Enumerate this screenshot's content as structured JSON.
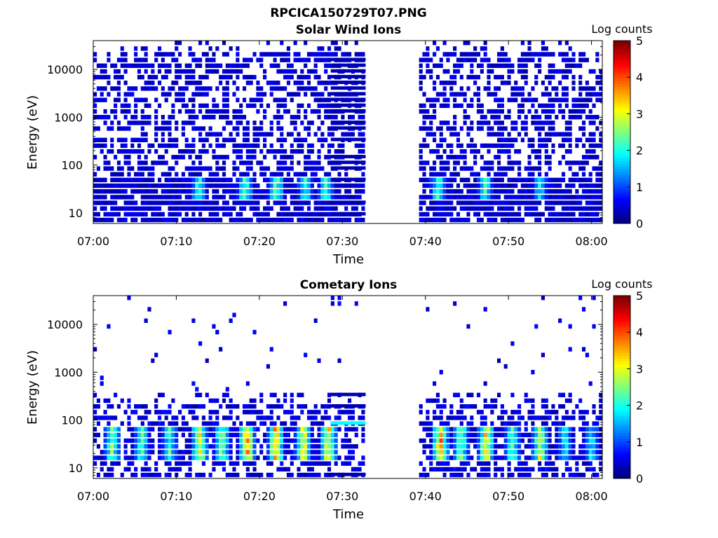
{
  "figure_title": "RPCICA150729T07.PNG",
  "chart_data": [
    {
      "type": "heatmap",
      "title": "Solar Wind Ions",
      "xlabel": "Time",
      "ylabel": "Energy (eV)",
      "y_scale": "log",
      "ylim": [
        6,
        40000
      ],
      "x_ticks": [
        "07:00",
        "07:10",
        "07:20",
        "07:30",
        "07:40",
        "07:50",
        "08:00"
      ],
      "xlim_minutes": [
        0,
        61.3
      ],
      "y_ticks": [
        {
          "value": 10,
          "label": "10"
        },
        {
          "value": 100,
          "label": "100"
        },
        {
          "value": 1000,
          "label": "1000"
        },
        {
          "value": 10000,
          "label": "10000"
        }
      ],
      "data_gap_minutes": [
        32.8,
        39.2
      ],
      "colorbar": {
        "label": "Log counts",
        "range": [
          0,
          5
        ],
        "ticks": [
          "0",
          "1",
          "2",
          "3",
          "4",
          "5"
        ],
        "colormap": "jet"
      },
      "features": [
        {
          "minute": 12.7,
          "level": 2.3
        },
        {
          "minute": 18.3,
          "level": 2.6
        },
        {
          "minute": 22.0,
          "level": 2.8
        },
        {
          "minute": 25.5,
          "level": 2.2
        },
        {
          "minute": 28.0,
          "level": 2.4
        },
        {
          "minute": 41.5,
          "level": 2.4
        },
        {
          "minute": 47.2,
          "level": 2.3
        },
        {
          "minute": 53.8,
          "level": 2.0
        }
      ]
    },
    {
      "type": "heatmap",
      "title": "Cometary Ions",
      "xlabel": "Time",
      "ylabel": "Energy (eV)",
      "y_scale": "log",
      "ylim": [
        6,
        40000
      ],
      "x_ticks": [
        "07:00",
        "07:10",
        "07:20",
        "07:30",
        "07:40",
        "07:50",
        "08:00"
      ],
      "xlim_minutes": [
        0,
        61.3
      ],
      "y_ticks": [
        {
          "value": 10,
          "label": "10"
        },
        {
          "value": 100,
          "label": "100"
        },
        {
          "value": 1000,
          "label": "1000"
        },
        {
          "value": 10000,
          "label": "10000"
        }
      ],
      "data_gap_minutes": [
        32.8,
        39.2
      ],
      "colorbar": {
        "label": "Log counts",
        "range": [
          0,
          5
        ],
        "ticks": [
          "0",
          "1",
          "2",
          "3",
          "4",
          "5"
        ],
        "colormap": "jet"
      },
      "features": [
        {
          "minute": 2.3,
          "level": 2.8
        },
        {
          "minute": 5.8,
          "level": 2.5
        },
        {
          "minute": 9.2,
          "level": 2.4
        },
        {
          "minute": 12.8,
          "level": 3.5
        },
        {
          "minute": 15.5,
          "level": 3.0
        },
        {
          "minute": 18.5,
          "level": 4.0
        },
        {
          "minute": 22.0,
          "level": 4.0
        },
        {
          "minute": 25.3,
          "level": 3.5
        },
        {
          "minute": 28.3,
          "level": 3.8
        },
        {
          "minute": 41.8,
          "level": 4.0
        },
        {
          "minute": 44.3,
          "level": 2.8
        },
        {
          "minute": 47.3,
          "level": 3.7
        },
        {
          "minute": 50.5,
          "level": 2.6
        },
        {
          "minute": 53.8,
          "level": 3.2
        },
        {
          "minute": 56.8,
          "level": 2.0
        },
        {
          "minute": 60.0,
          "level": 2.0
        }
      ]
    }
  ]
}
